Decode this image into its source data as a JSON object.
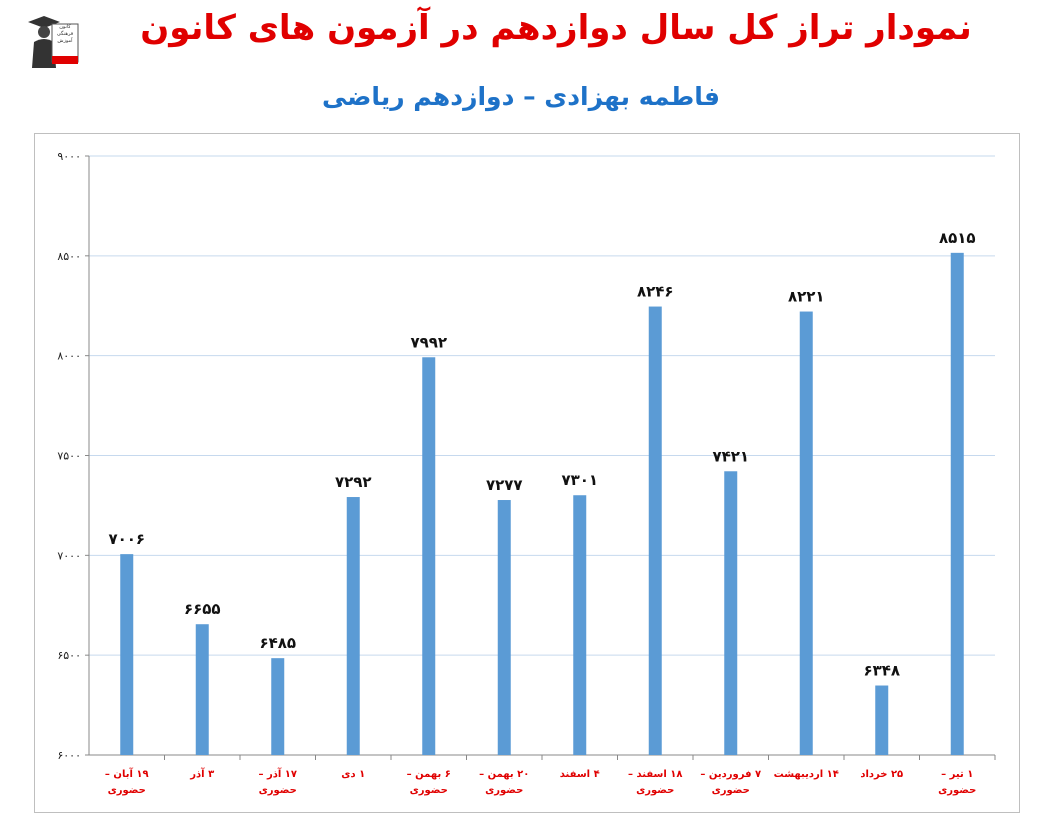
{
  "header": {
    "title": "نمودار تراز کل سال دوازدهم در آزمون های کانون",
    "subtitle": "فاطمه بهزادی – دوازدهم ریاضی"
  },
  "logo": {
    "icon": "graduate-figure-icon",
    "lines": [
      "کانون",
      "فرهنگی",
      "آموزش",
      "قلم چی"
    ],
    "accent_color": "#e00000"
  },
  "chart_data": {
    "type": "bar",
    "categories": [
      "۱۹ آبان – حضوری",
      "۳ آذر",
      "۱۷ آذر – حضوری",
      "۱ دی",
      "۶ بهمن – حضوری",
      "۲۰ بهمن – حضوری",
      "۴ اسفند",
      "۱۸ اسفند – حضوری",
      "۷ فروردین – حضوری",
      "۱۴ اردیبهشت",
      "۲۵ خرداد",
      "۱ تیر – حضوری"
    ],
    "values": [
      7006,
      6655,
      6485,
      7292,
      7992,
      7277,
      7301,
      8246,
      7421,
      8221,
      6348,
      8515
    ],
    "value_labels": [
      "۷۰۰۶",
      "۶۶۵۵",
      "۶۴۸۵",
      "۷۲۹۲",
      "۷۹۹۲",
      "۷۲۷۷",
      "۷۳۰۱",
      "۸۲۴۶",
      "۷۴۲۱",
      "۸۲۲۱",
      "۶۳۴۸",
      "۸۵۱۵"
    ],
    "ylim": [
      6000,
      9000
    ],
    "yticks": [
      6000,
      6500,
      7000,
      7500,
      8000,
      8500,
      9000
    ],
    "ytick_labels": [
      "۶۰۰۰",
      "۶۵۰۰",
      "۷۰۰۰",
      "۷۵۰۰",
      "۸۰۰۰",
      "۸۵۰۰",
      "۹۰۰۰"
    ],
    "grid": true,
    "bar_color": "#5b9bd5",
    "label_color": "#e00000"
  }
}
